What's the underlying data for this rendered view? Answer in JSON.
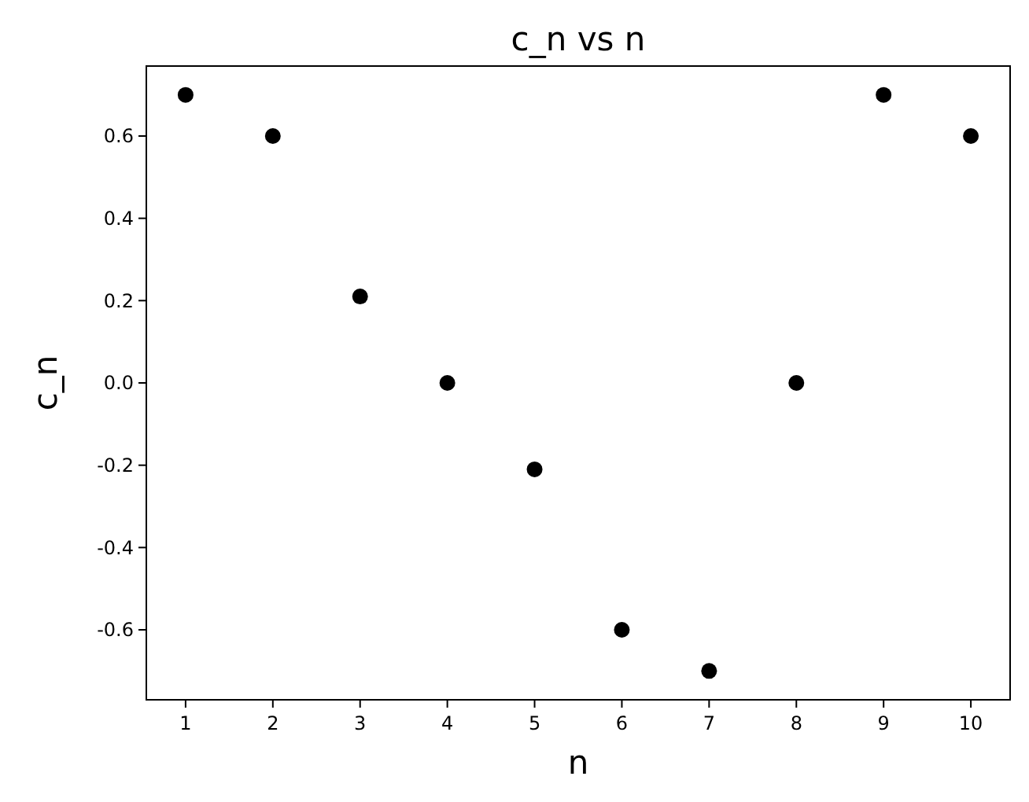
{
  "chart_data": {
    "type": "scatter",
    "title": "c_n vs n",
    "xlabel": "n",
    "ylabel": "c_n",
    "x": [
      1,
      2,
      3,
      4,
      5,
      6,
      7,
      8,
      9,
      10
    ],
    "values": [
      0.7,
      0.6,
      0.21,
      0,
      -0.21,
      -0.6,
      -0.7,
      0,
      0.7,
      0.6
    ],
    "color": "#000000",
    "marker": "circle",
    "xlim": [
      0.55,
      10.45
    ],
    "xticks": [
      1,
      2,
      3,
      4,
      5,
      6,
      7,
      8,
      9,
      10
    ],
    "ylim": [
      -0.77,
      0.77
    ],
    "yticks": [
      {
        "value": -0.6,
        "label": "-0.6"
      },
      {
        "value": -0.4,
        "label": "-0.4"
      },
      {
        "value": -0.2,
        "label": "-0.2"
      },
      {
        "value": 0,
        "label": "0.0"
      },
      {
        "value": 0.2,
        "label": "0.2"
      },
      {
        "value": 0.4,
        "label": "0.4"
      },
      {
        "value": 0.6,
        "label": "0.6"
      }
    ]
  }
}
